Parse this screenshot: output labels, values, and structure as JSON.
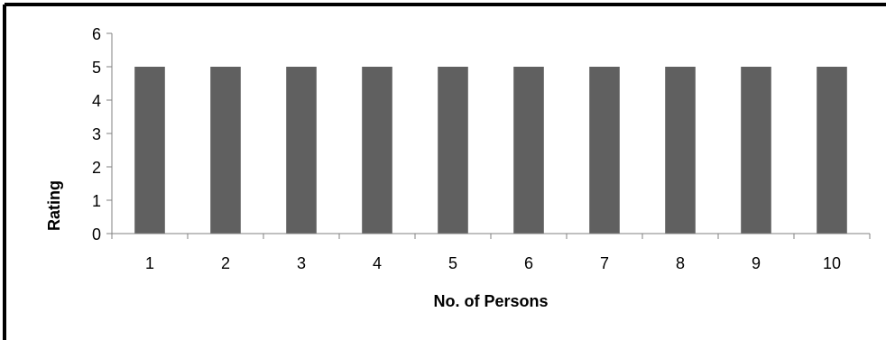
{
  "chart_data": {
    "type": "bar",
    "categories": [
      "1",
      "2",
      "3",
      "4",
      "5",
      "6",
      "7",
      "8",
      "9",
      "10"
    ],
    "values": [
      5,
      5,
      5,
      5,
      5,
      5,
      5,
      5,
      5,
      5
    ],
    "title": "",
    "xlabel": "No. of Persons",
    "ylabel": "Rating",
    "ylim": [
      0,
      6
    ],
    "yticks": [
      "0",
      "1",
      "2",
      "3",
      "4",
      "5",
      "6"
    ],
    "grid": false,
    "legend": "none",
    "bar_color": "#606060",
    "axis_color": "#808080",
    "border_color": "#000000"
  }
}
